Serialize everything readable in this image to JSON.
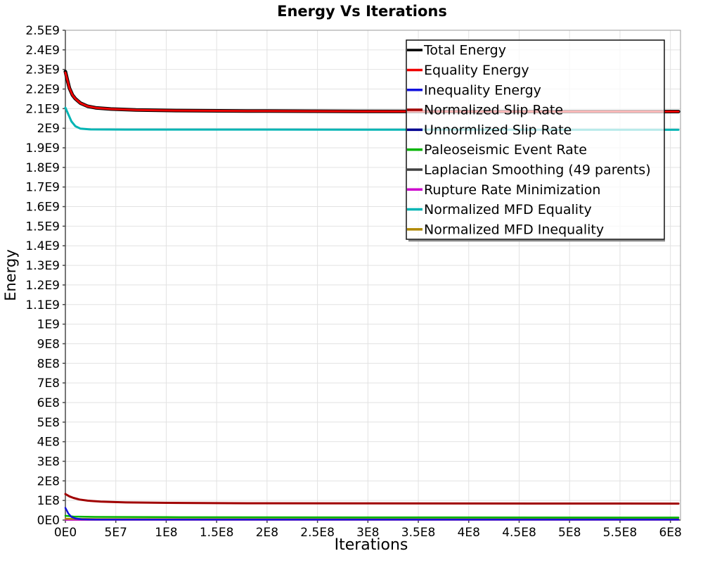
{
  "chart_data": {
    "type": "line",
    "title": "Energy Vs Iterations",
    "xlabel": "Iterations",
    "ylabel": "Energy",
    "xlim": [
      0,
      610000000
    ],
    "ylim": [
      0,
      2500000000
    ],
    "grid": true,
    "background": "#ffffff",
    "legend": {
      "position": "top-right",
      "style": "translucent-white-box"
    },
    "x_ticks": {
      "labels": [
        "0E0",
        "5E7",
        "1E8",
        "1.5E8",
        "2E8",
        "2.5E8",
        "3E8",
        "3.5E8",
        "4E8",
        "4.5E8",
        "5E8",
        "5.5E8",
        "6E8"
      ],
      "values": [
        0,
        50000000,
        100000000,
        150000000,
        200000000,
        250000000,
        300000000,
        350000000,
        400000000,
        450000000,
        500000000,
        550000000,
        600000000
      ]
    },
    "y_ticks": {
      "labels": [
        "0E0",
        "1E8",
        "2E8",
        "3E8",
        "4E8",
        "5E8",
        "6E8",
        "7E8",
        "8E8",
        "9E8",
        "1E9",
        "1.1E9",
        "1.2E9",
        "1.3E9",
        "1.4E9",
        "1.5E9",
        "1.6E9",
        "1.7E9",
        "1.8E9",
        "1.9E9",
        "2E9",
        "2.1E9",
        "2.2E9",
        "2.3E9",
        "2.4E9",
        "2.5E9"
      ],
      "values": [
        0,
        100000000,
        200000000,
        300000000,
        400000000,
        500000000,
        600000000,
        700000000,
        800000000,
        900000000,
        1000000000,
        1100000000,
        1200000000,
        1300000000,
        1400000000,
        1500000000,
        1600000000,
        1700000000,
        1800000000,
        1900000000,
        2000000000,
        2100000000,
        2200000000,
        2300000000,
        2400000000,
        2500000000
      ]
    },
    "draw_order": [
      4,
      6,
      7,
      9,
      5,
      2,
      3,
      8,
      0,
      1
    ],
    "series": [
      {
        "name": "Total Energy",
        "color": "#000000",
        "width": 5,
        "points": [
          [
            0,
            2289000000.0
          ],
          [
            2000000.0,
            2245000000.0
          ],
          [
            4000000.0,
            2205000000.0
          ],
          [
            7000000.0,
            2170000000.0
          ],
          [
            10000000.0,
            2150000000.0
          ],
          [
            15000000.0,
            2128000000.0
          ],
          [
            22000000.0,
            2112000000.0
          ],
          [
            30000000.0,
            2104000000.0
          ],
          [
            45000000.0,
            2098000000.0
          ],
          [
            70000000.0,
            2093000000.0
          ],
          [
            110000000.0,
            2090000000.0
          ],
          [
            180000000.0,
            2088000000.0
          ],
          [
            300000000.0,
            2086000000.0
          ],
          [
            450000000.0,
            2085000000.0
          ],
          [
            608000000.0,
            2085000000.0
          ]
        ]
      },
      {
        "name": "Equality Energy",
        "color": "#ee0000",
        "width": 3,
        "points": [
          [
            0,
            2284000000.0
          ],
          [
            2000000.0,
            2245000000.0
          ],
          [
            4000000.0,
            2205000000.0
          ],
          [
            7000000.0,
            2170000000.0
          ],
          [
            10000000.0,
            2150000000.0
          ],
          [
            15000000.0,
            2128000000.0
          ],
          [
            22000000.0,
            2112000000.0
          ],
          [
            30000000.0,
            2104000000.0
          ],
          [
            45000000.0,
            2098000000.0
          ],
          [
            70000000.0,
            2093000000.0
          ],
          [
            110000000.0,
            2090000000.0
          ],
          [
            180000000.0,
            2088000000.0
          ],
          [
            300000000.0,
            2086000000.0
          ],
          [
            450000000.0,
            2085000000.0
          ],
          [
            608000000.0,
            2085000000.0
          ]
        ]
      },
      {
        "name": "Inequality Energy",
        "color": "#1212dd",
        "width": 2.5,
        "points": [
          [
            0,
            62000000.0
          ],
          [
            3000000.0,
            33000000.0
          ],
          [
            6000000.0,
            16000000.0
          ],
          [
            10000000.0,
            8000000.0
          ],
          [
            16000000.0,
            4000000.0
          ],
          [
            30000000.0,
            3000000.0
          ],
          [
            608000000.0,
            2500000.0
          ]
        ]
      },
      {
        "name": "Normalized Slip Rate",
        "color": "#a00000",
        "width": 3,
        "points": [
          [
            0,
            133000000.0
          ],
          [
            4000000.0,
            121000000.0
          ],
          [
            8000000.0,
            113000000.0
          ],
          [
            14000000.0,
            105000000.0
          ],
          [
            22000000.0,
            99000000.0
          ],
          [
            35000000.0,
            94000000.0
          ],
          [
            60000000.0,
            90000000.0
          ],
          [
            100000000.0,
            88000000.0
          ],
          [
            180000000.0,
            86000000.0
          ],
          [
            300000000.0,
            85000000.0
          ],
          [
            608000000.0,
            84000000.0
          ]
        ]
      },
      {
        "name": "Unnormlized Slip Rate",
        "color": "#000090",
        "width": 2,
        "points": [
          [
            0,
            3500000.0
          ],
          [
            608000000.0,
            3000000.0
          ]
        ]
      },
      {
        "name": "Paleoseismic Event Rate",
        "color": "#00b400",
        "width": 2.5,
        "points": [
          [
            0,
            22000000.0
          ],
          [
            8000000.0,
            18000000.0
          ],
          [
            30000000.0,
            16000000.0
          ],
          [
            100000000.0,
            15000000.0
          ],
          [
            300000000.0,
            14000000.0
          ],
          [
            608000000.0,
            13000000.0
          ]
        ]
      },
      {
        "name": "Laplacian Smoothing (49 parents)",
        "color": "#404040",
        "width": 2,
        "points": [
          [
            0,
            2200000.0
          ],
          [
            608000000.0,
            2000000.0
          ]
        ]
      },
      {
        "name": "Rupture Rate Minimization",
        "color": "#cc00cc",
        "width": 2,
        "points": [
          [
            0,
            1200000.0
          ],
          [
            608000000.0,
            1000000.0
          ]
        ]
      },
      {
        "name": "Normalized MFD Equality",
        "color": "#00b4b4",
        "width": 3,
        "points": [
          [
            0,
            2105000000.0
          ],
          [
            3000000.0,
            2070000000.0
          ],
          [
            6000000.0,
            2035000000.0
          ],
          [
            10000000.0,
            2010000000.0
          ],
          [
            15000000.0,
            1998000000.0
          ],
          [
            25000000.0,
            1994000000.0
          ],
          [
            60000000.0,
            1993000000.0
          ],
          [
            608000000.0,
            1992000000.0
          ]
        ]
      },
      {
        "name": "Normalized MFD Inequality",
        "color": "#b08800",
        "width": 2.5,
        "points": [
          [
            0,
            7000000.0
          ],
          [
            30000000.0,
            5500000.0
          ],
          [
            608000000.0,
            5000000.0
          ]
        ]
      }
    ]
  }
}
